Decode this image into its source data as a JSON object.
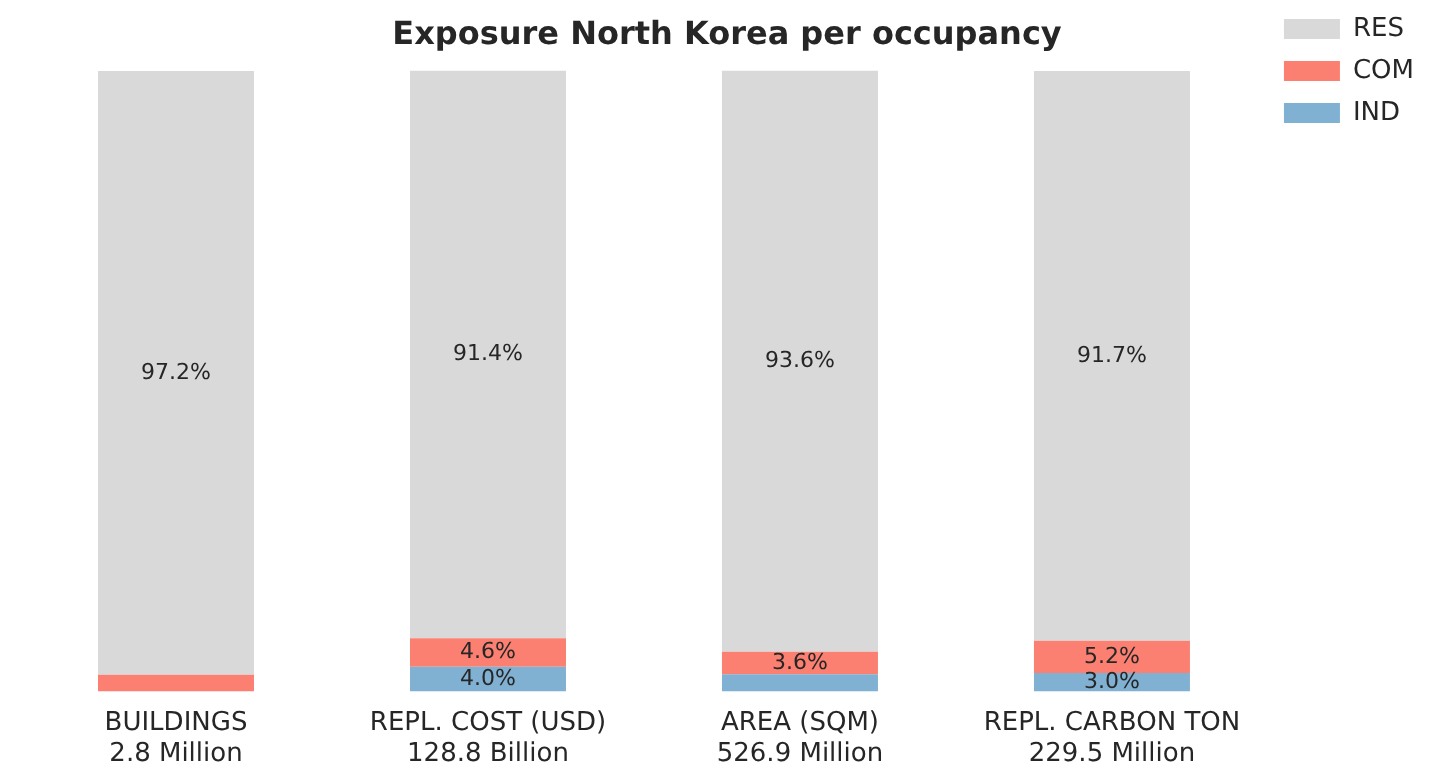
{
  "chart_data": {
    "type": "bar",
    "title": "Exposure North Korea per occupancy",
    "stacked": true,
    "categories": [
      "BUILDINGS\n2.8 Million",
      "REPL. COST (USD)\n128.8 Billion",
      "AREA (SQM)\n526.9 Million",
      "REPL. CARBON TON\n229.5 Million"
    ],
    "series": [
      {
        "name": "IND",
        "color": "#80b1d3",
        "values": [
          null,
          4.0,
          2.8,
          3.0
        ],
        "value_labels": [
          null,
          "4.0%",
          null,
          "3.0%"
        ]
      },
      {
        "name": "COM",
        "color": "#fb8072",
        "values": [
          2.7,
          4.6,
          3.6,
          5.2
        ],
        "value_labels": [
          null,
          "4.6%",
          "3.6%",
          "5.2%"
        ]
      },
      {
        "name": "RES",
        "color": "#d9d9d9",
        "values": [
          97.2,
          91.4,
          93.6,
          91.7
        ],
        "value_labels": [
          "97.2%",
          "91.4%",
          "93.6%",
          "91.7%"
        ]
      }
    ],
    "ylim": [
      0,
      100
    ],
    "tick_labels": "x",
    "grid": false,
    "legend": "top right"
  }
}
